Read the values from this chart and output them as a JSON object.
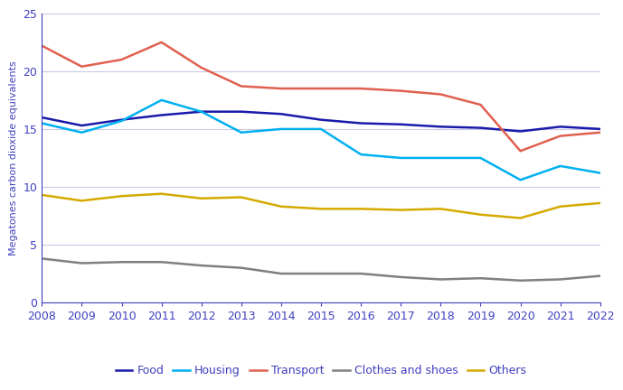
{
  "years": [
    2008,
    2009,
    2010,
    2011,
    2012,
    2013,
    2014,
    2015,
    2016,
    2017,
    2018,
    2019,
    2020,
    2021,
    2022
  ],
  "food": [
    16.0,
    15.3,
    15.8,
    16.2,
    16.5,
    16.5,
    16.3,
    15.8,
    15.5,
    15.4,
    15.2,
    15.1,
    14.8,
    15.2,
    15.0
  ],
  "housing": [
    15.5,
    14.7,
    15.7,
    17.5,
    16.5,
    14.7,
    15.0,
    15.0,
    12.8,
    12.5,
    12.5,
    12.5,
    10.6,
    11.8,
    11.2
  ],
  "transport": [
    22.2,
    20.4,
    21.0,
    22.5,
    20.3,
    18.7,
    18.5,
    18.5,
    18.5,
    18.3,
    18.0,
    17.1,
    13.1,
    14.4,
    14.7
  ],
  "clothes_shoes": [
    3.8,
    3.4,
    3.5,
    3.5,
    3.2,
    3.0,
    2.5,
    2.5,
    2.5,
    2.2,
    2.0,
    2.1,
    1.9,
    2.0,
    2.3
  ],
  "others": [
    9.3,
    8.8,
    9.2,
    9.4,
    9.0,
    9.1,
    8.3,
    8.1,
    8.1,
    8.0,
    8.1,
    7.6,
    7.3,
    8.3,
    8.6
  ],
  "color_food": "#1a1aaa",
  "color_housing": "#00b0f0",
  "color_transport": "#e06050",
  "color_clothes": "#808080",
  "color_others": "#d4aa00",
  "ylabel": "Megatones carbon dioxide equivalents",
  "ylim": [
    0,
    25
  ],
  "yticks": [
    0,
    5,
    10,
    15,
    20,
    25
  ],
  "legend_labels": [
    "Food",
    "Housing",
    "Transport",
    "Clothes and shoes",
    "Others"
  ],
  "grid_color": "#c8c8e8",
  "axis_color": "#4040c0",
  "label_color": "#4040c0",
  "tick_color": "#4040c0",
  "linewidth": 1.8,
  "tick_fontsize": 9,
  "ylabel_fontsize": 8,
  "legend_fontsize": 9
}
